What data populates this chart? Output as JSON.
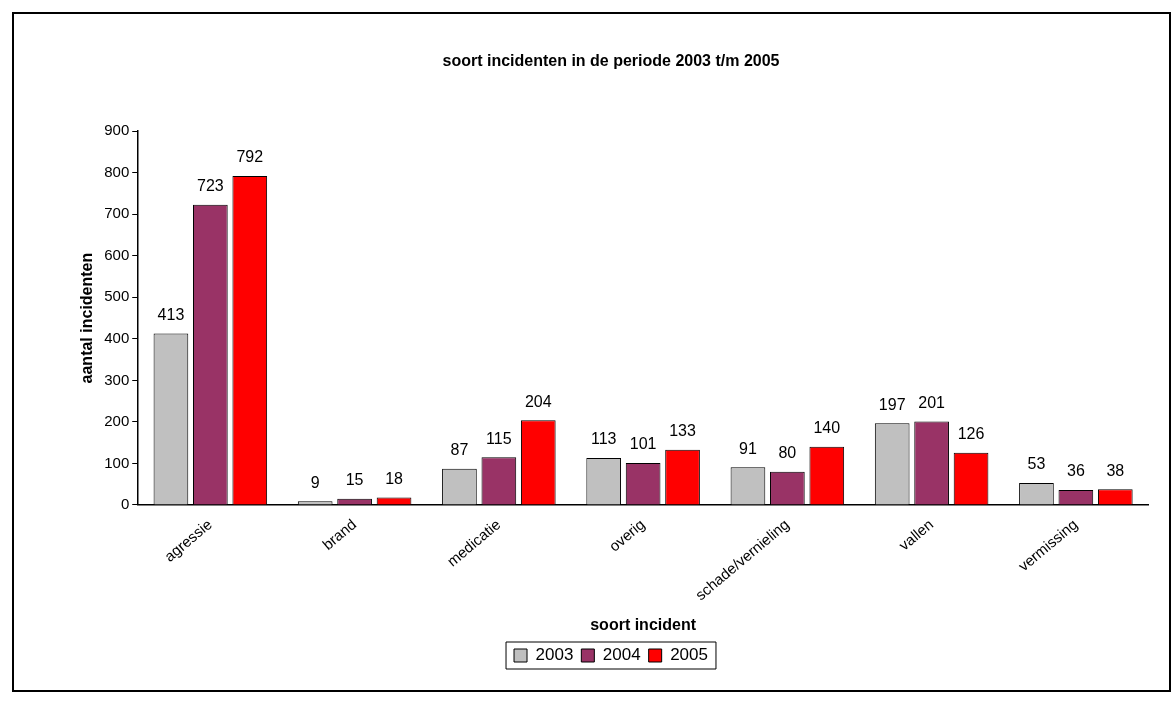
{
  "chart_data": {
    "type": "bar",
    "title": "soort incidenten in de periode 2003 t/m 2005",
    "xlabel": "soort incident",
    "ylabel": "aantal incidenten",
    "categories": [
      "agressie",
      "brand",
      "medicatie",
      "overig",
      "schade/vernieling",
      "vallen",
      "vermissing"
    ],
    "series": [
      {
        "name": "2003",
        "color": "#c0c0c0",
        "values": [
          413,
          9,
          87,
          113,
          91,
          197,
          53
        ]
      },
      {
        "name": "2004",
        "color": "#993366",
        "values": [
          723,
          15,
          115,
          101,
          80,
          201,
          36
        ]
      },
      {
        "name": "2005",
        "color": "#ff0000",
        "values": [
          792,
          18,
          204,
          133,
          140,
          126,
          38
        ]
      }
    ],
    "ylim": [
      0,
      900
    ],
    "yticks": [
      0,
      100,
      200,
      300,
      400,
      500,
      600,
      700,
      800,
      900
    ],
    "grid": false,
    "legend": "bottom",
    "data_labels": true
  }
}
